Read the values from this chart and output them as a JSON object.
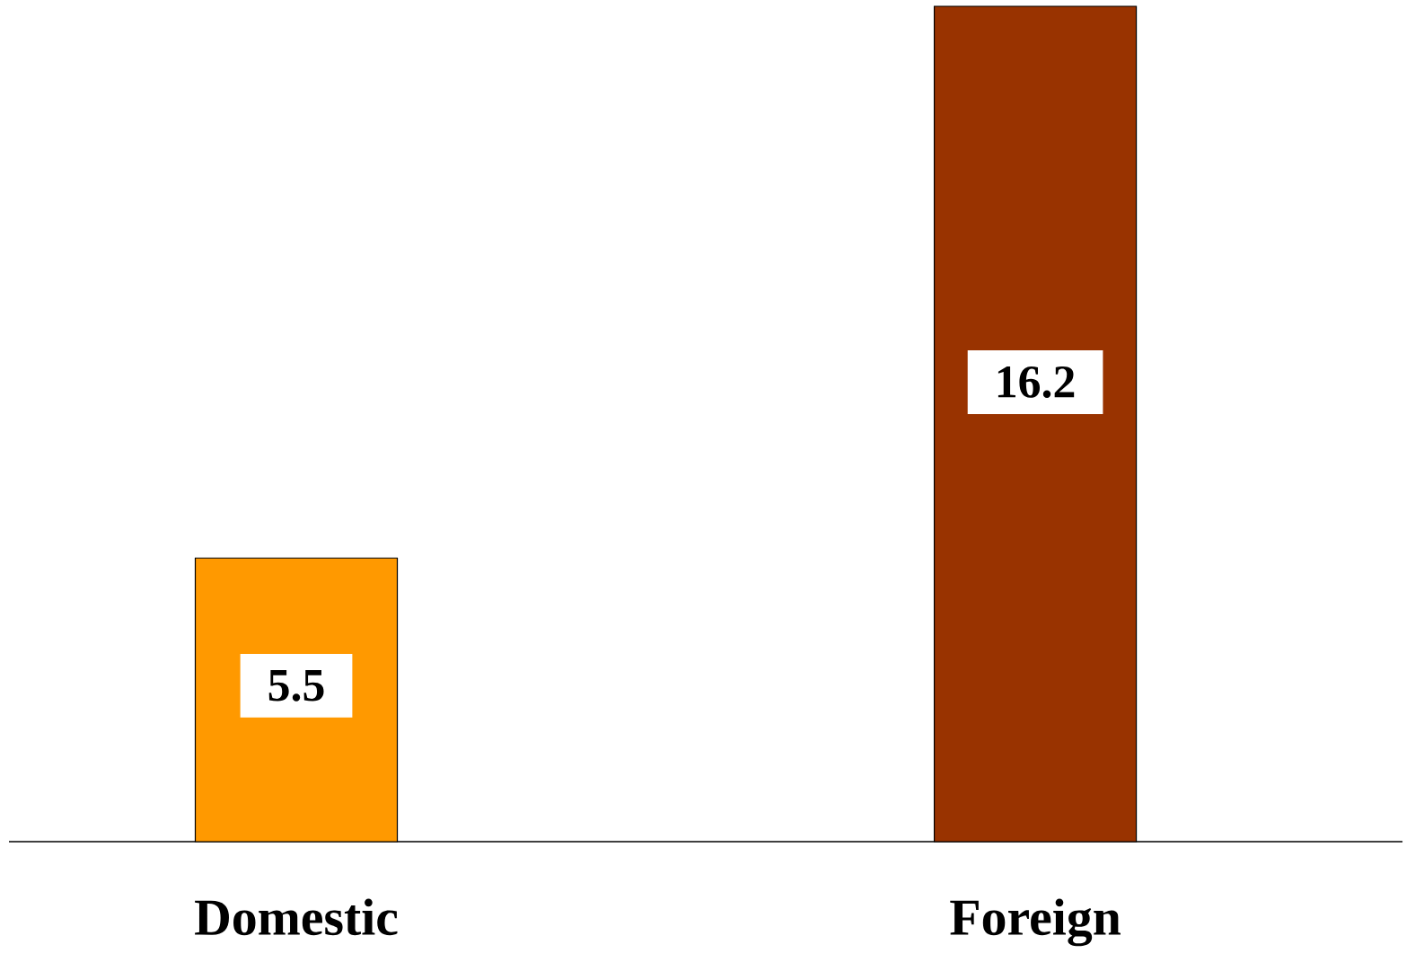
{
  "chart_data": {
    "type": "bar",
    "categories": [
      "Domestic",
      "Foreign"
    ],
    "values": [
      5.5,
      16.2
    ],
    "colors": [
      "#ff9900",
      "#993300"
    ],
    "data_labels": true
  }
}
